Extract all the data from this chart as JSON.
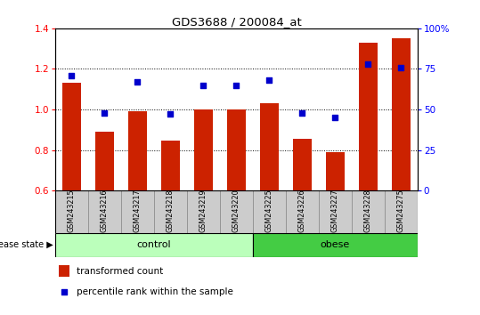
{
  "title": "GDS3688 / 200084_at",
  "samples": [
    "GSM243215",
    "GSM243216",
    "GSM243217",
    "GSM243218",
    "GSM243219",
    "GSM243220",
    "GSM243225",
    "GSM243226",
    "GSM243227",
    "GSM243228",
    "GSM243275"
  ],
  "transformed_count": [
    1.13,
    0.89,
    0.99,
    0.845,
    1.0,
    1.0,
    1.03,
    0.855,
    0.79,
    1.33,
    1.35
  ],
  "percentile_rank": [
    71,
    48,
    67,
    47,
    65,
    65,
    68,
    48,
    45,
    78,
    76
  ],
  "ylim_left": [
    0.6,
    1.4
  ],
  "ylim_right": [
    0,
    100
  ],
  "yticks_left": [
    0.6,
    0.8,
    1.0,
    1.2,
    1.4
  ],
  "yticks_right": [
    0,
    25,
    50,
    75,
    100
  ],
  "bar_color": "#cc2200",
  "dot_color": "#0000cc",
  "tick_label_bg": "#cccccc",
  "control_bg": "#bbffbb",
  "obese_bg": "#44cc44",
  "n_control": 6,
  "n_obese": 5,
  "legend_bar_label": "transformed count",
  "legend_dot_label": "percentile rank within the sample",
  "group_label_control": "control",
  "group_label_obese": "obese",
  "disease_state_label": "disease state"
}
